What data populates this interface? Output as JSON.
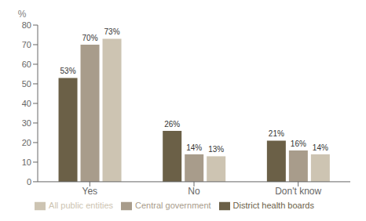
{
  "chart_data": {
    "type": "bar",
    "categories": [
      "Yes",
      "No",
      "Don't know"
    ],
    "series": [
      {
        "name": "District health boards",
        "color": "#6b6047",
        "values": [
          53,
          26,
          21
        ],
        "value_labels": [
          "53%",
          "26%",
          "21%"
        ]
      },
      {
        "name": "Central government",
        "color": "#a89c8b",
        "values": [
          70,
          14,
          16
        ],
        "value_labels": [
          "70%",
          "14%",
          "16%"
        ]
      },
      {
        "name": "All public entities",
        "color": "#cdc4b2",
        "values": [
          73,
          13,
          14
        ],
        "value_labels": [
          "73%",
          "13%",
          "14%"
        ]
      }
    ],
    "ylabel": "%",
    "ylim": [
      0,
      80
    ],
    "yticks": [
      0,
      10,
      20,
      30,
      40,
      50,
      60,
      70,
      80
    ],
    "data_labels": true,
    "legend": "bottom",
    "grid": false
  }
}
